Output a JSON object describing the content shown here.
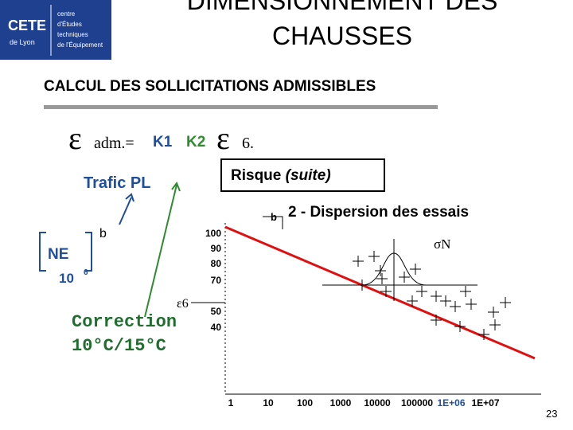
{
  "logo": {
    "name": "CETE",
    "place": "de Lyon",
    "lines": [
      "centre",
      "d'Études",
      "techniques",
      "de l'Équipement"
    ]
  },
  "header": {
    "title_lines": [
      "DIMENSIONNEMENT DES",
      "CHAUSSES"
    ],
    "subtitle": "CALCUL DES SOLLICITATIONS ADMISSIBLES"
  },
  "formula": {
    "epsilon": "ε",
    "adm": "adm.=",
    "k1": "K1",
    "k2": "K2",
    "epsilon_2": "ε",
    "six": "6."
  },
  "labels": {
    "trafic": "Trafic PL",
    "risque": "Risque",
    "suite": "(suite)",
    "b_left": "b",
    "ne": "NE",
    "ten": "10",
    "six": "6",
    "epsilon6": "ε6",
    "correction_lines": [
      "Correction",
      "10°C/15°C"
    ]
  },
  "diagram": {
    "b": "b",
    "dispersion": "2 - Dispersion des essais",
    "sigma": "σN",
    "y_axis_labels": [
      "100",
      "90",
      "80",
      "70",
      "50",
      "40"
    ],
    "x_axis_labels": [
      "1",
      "10",
      "100",
      "1000",
      "10000",
      "100000",
      "1E+06",
      "1E+07"
    ]
  },
  "page_number": "23"
}
